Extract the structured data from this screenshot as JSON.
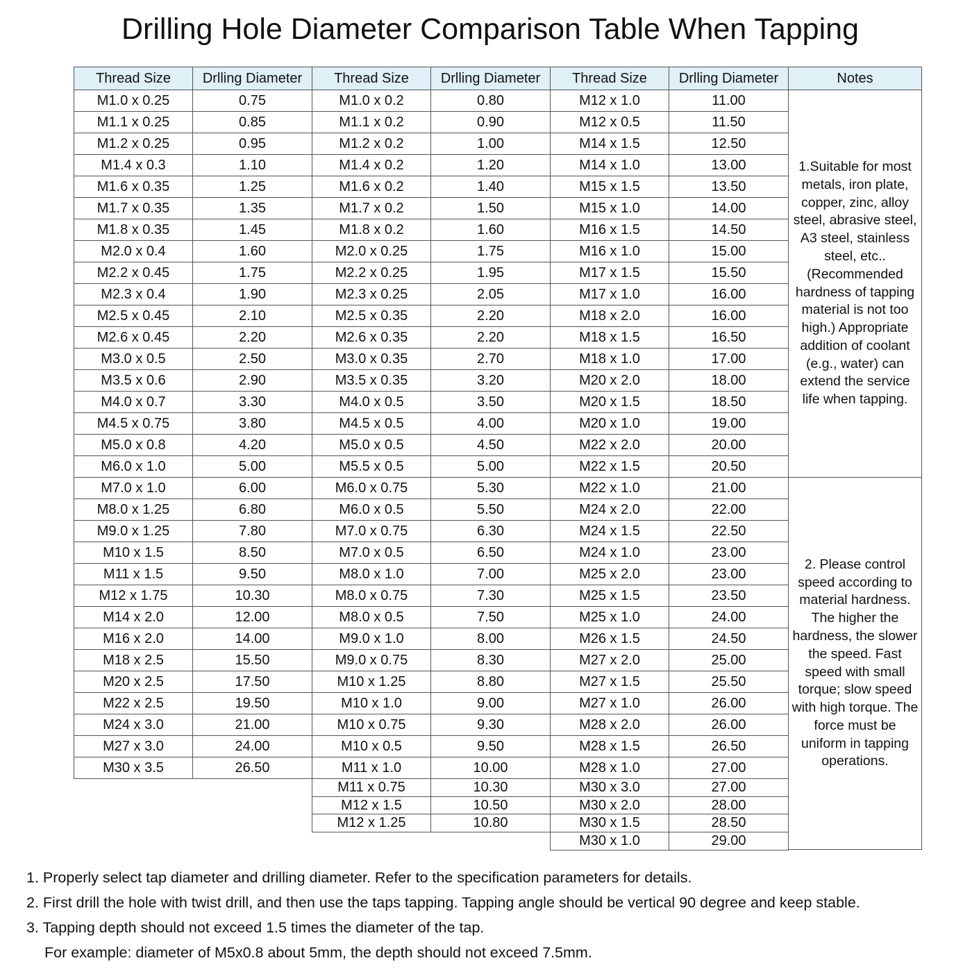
{
  "title": "Drilling Hole Diameter Comparison Table When Tapping",
  "headers": [
    "Thread Size",
    "Drlling Diameter",
    "Thread Size",
    "Drlling Diameter",
    "Thread Size",
    "Drlling Diameter",
    "Notes"
  ],
  "groups": [
    [
      [
        "M1.0 x 0.25",
        "0.75"
      ],
      [
        "M1.1 x 0.25",
        "0.85"
      ],
      [
        "M1.2 x 0.25",
        "0.95"
      ],
      [
        "M1.4 x 0.3",
        "1.10"
      ],
      [
        "M1.6 x 0.35",
        "1.25"
      ],
      [
        "M1.7 x 0.35",
        "1.35"
      ],
      [
        "M1.8 x 0.35",
        "1.45"
      ],
      [
        "M2.0 x 0.4",
        "1.60"
      ],
      [
        "M2.2 x 0.45",
        "1.75"
      ],
      [
        "M2.3 x 0.4",
        "1.90"
      ],
      [
        "M2.5 x 0.45",
        "2.10"
      ],
      [
        "M2.6 x 0.45",
        "2.20"
      ],
      [
        "M3.0 x 0.5",
        "2.50"
      ],
      [
        "M3.5 x 0.6",
        "2.90"
      ],
      [
        "M4.0 x 0.7",
        "3.30"
      ],
      [
        "M4.5 x 0.75",
        "3.80"
      ],
      [
        "M5.0 x 0.8",
        "4.20"
      ],
      [
        "M6.0 x 1.0",
        "5.00"
      ],
      [
        "M7.0 x 1.0",
        "6.00"
      ],
      [
        "M8.0 x 1.25",
        "6.80"
      ],
      [
        "M9.0 x 1.25",
        "7.80"
      ],
      [
        "M10 x 1.5",
        "8.50"
      ],
      [
        "M11 x 1.5",
        "9.50"
      ],
      [
        "M12 x 1.75",
        "10.30"
      ],
      [
        "M14 x 2.0",
        "12.00"
      ],
      [
        "M16 x 2.0",
        "14.00"
      ],
      [
        "M18 x 2.5",
        "15.50"
      ],
      [
        "M20 x 2.5",
        "17.50"
      ],
      [
        "M22 x 2.5",
        "19.50"
      ],
      [
        "M24 x 3.0",
        "21.00"
      ],
      [
        "M27 x 3.0",
        "24.00"
      ],
      [
        "M30 x 3.5",
        "26.50"
      ]
    ],
    [
      [
        "M1.0 x 0.2",
        "0.80"
      ],
      [
        "M1.1 x 0.2",
        "0.90"
      ],
      [
        "M1.2 x 0.2",
        "1.00"
      ],
      [
        "M1.4 x 0.2",
        "1.20"
      ],
      [
        "M1.6 x 0.2",
        "1.40"
      ],
      [
        "M1.7 x 0.2",
        "1.50"
      ],
      [
        "M1.8 x 0.2",
        "1.60"
      ],
      [
        "M2.0 x 0.25",
        "1.75"
      ],
      [
        "M2.2 x 0.25",
        "1.95"
      ],
      [
        "M2.3 x 0.25",
        "2.05"
      ],
      [
        "M2.5 x 0.35",
        "2.20"
      ],
      [
        "M2.6 x 0.35",
        "2.20"
      ],
      [
        "M3.0 x 0.35",
        "2.70"
      ],
      [
        "M3.5 x 0.35",
        "3.20"
      ],
      [
        "M4.0 x 0.5",
        "3.50"
      ],
      [
        "M4.5 x 0.5",
        "4.00"
      ],
      [
        "M5.0 x 0.5",
        "4.50"
      ],
      [
        "M5.5 x 0.5",
        "5.00"
      ],
      [
        "M6.0 x 0.75",
        "5.30"
      ],
      [
        "M6.0 x 0.5",
        "5.50"
      ],
      [
        "M7.0 x 0.75",
        "6.30"
      ],
      [
        "M7.0 x 0.5",
        "6.50"
      ],
      [
        "M8.0 x 1.0",
        "7.00"
      ],
      [
        "M8.0 x 0.75",
        "7.30"
      ],
      [
        "M8.0 x 0.5",
        "7.50"
      ],
      [
        "M9.0 x 1.0",
        "8.00"
      ],
      [
        "M9.0 x 0.75",
        "8.30"
      ],
      [
        "M10 x 1.25",
        "8.80"
      ],
      [
        "M10 x 1.0",
        "9.00"
      ],
      [
        "M10 x 0.75",
        "9.30"
      ],
      [
        "M10 x 0.5",
        "9.50"
      ],
      [
        "M11 x 1.0",
        "10.00"
      ],
      [
        "M11 x 0.75",
        "10.30"
      ],
      [
        "M12 x 1.5",
        "10.50"
      ],
      [
        "M12 x 1.25",
        "10.80"
      ]
    ],
    [
      [
        "M12 x 1.0",
        "11.00"
      ],
      [
        "M12 x 0.5",
        "11.50"
      ],
      [
        "M14 x 1.5",
        "12.50"
      ],
      [
        "M14 x 1.0",
        "13.00"
      ],
      [
        "M15 x 1.5",
        "13.50"
      ],
      [
        "M15 x 1.0",
        "14.00"
      ],
      [
        "M16 x 1.5",
        "14.50"
      ],
      [
        "M16 x 1.0",
        "15.00"
      ],
      [
        "M17 x 1.5",
        "15.50"
      ],
      [
        "M17 x 1.0",
        "16.00"
      ],
      [
        "M18 x 2.0",
        "16.00"
      ],
      [
        "M18 x 1.5",
        "16.50"
      ],
      [
        "M18 x 1.0",
        "17.00"
      ],
      [
        "M20 x 2.0",
        "18.00"
      ],
      [
        "M20 x 1.5",
        "18.50"
      ],
      [
        "M20 x 1.0",
        "19.00"
      ],
      [
        "M22 x 2.0",
        "20.00"
      ],
      [
        "M22 x 1.5",
        "20.50"
      ],
      [
        "M22 x 1.0",
        "21.00"
      ],
      [
        "M24 x 2.0",
        "22.00"
      ],
      [
        "M24 x 1.5",
        "22.50"
      ],
      [
        "M24 x 1.0",
        "23.00"
      ],
      [
        "M25 x 2.0",
        "23.00"
      ],
      [
        "M25 x 1.5",
        "23.50"
      ],
      [
        "M25 x 1.0",
        "24.00"
      ],
      [
        "M26 x 1.5",
        "24.50"
      ],
      [
        "M27 x 2.0",
        "25.00"
      ],
      [
        "M27 x 1.5",
        "25.50"
      ],
      [
        "M27 x 1.0",
        "26.00"
      ],
      [
        "M28 x 2.0",
        "26.00"
      ],
      [
        "M28 x 1.5",
        "26.50"
      ],
      [
        "M28 x 1.0",
        "27.00"
      ],
      [
        "M30 x 3.0",
        "27.00"
      ],
      [
        "M30 x 2.0",
        "28.00"
      ],
      [
        "M30 x 1.5",
        "28.50"
      ],
      [
        "M30 x 1.0",
        "29.00"
      ]
    ]
  ],
  "notes": [
    "1.Suitable for most metals, iron plate, copper, zinc, alloy steel, abrasive steel, A3 steel, stainless steel, etc..(Recommended hardness of tapping material is not too high.) Appropriate addition of coolant (e.g., water) can extend the service life when tapping.",
    "2. Please control speed according to material hardness. The higher the hardness, the slower the speed. Fast speed with small torque; slow speed with high torque. The force must be uniform in tapping operations."
  ],
  "footer": [
    "1. Properly select tap diameter and drilling diameter. Refer to the specification parameters for details.",
    "2. First drill the hole with twist drill, and then use the taps tapping. Tapping angle should be vertical 90 degree and keep stable.",
    "3. Tapping depth should not exceed 1.5 times the diameter of the tap.",
    "For example: diameter of M5x0.8 about 5mm, the depth should not exceed 7.5mm."
  ],
  "colors": {
    "header_bg": "#dff0f6",
    "border": "#555555"
  }
}
